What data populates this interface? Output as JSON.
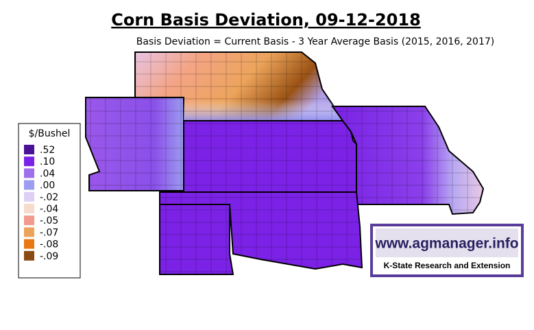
{
  "header": {
    "title": "Corn Basis Deviation, 09-12-2018",
    "subtitle": "Basis Deviation = Current Basis - 3 Year Average Basis (2015, 2016, 2017)"
  },
  "legend": {
    "title": "$/Bushel",
    "items": [
      {
        "label": ".52",
        "color": "#4b1196"
      },
      {
        "label": ".10",
        "color": "#7b22e6"
      },
      {
        "label": ".04",
        "color": "#a070ec"
      },
      {
        "label": ".00",
        "color": "#9c9cf0"
      },
      {
        "label": "-.02",
        "color": "#ddd0f4"
      },
      {
        "label": "-.04",
        "color": "#f6dccc"
      },
      {
        "label": "-.05",
        "color": "#f29a8e"
      },
      {
        "label": "-.07",
        "color": "#eca45c"
      },
      {
        "label": "-.08",
        "color": "#e87812"
      },
      {
        "label": "-.09",
        "color": "#8a4a14"
      }
    ]
  },
  "logo": {
    "url": "www.agmanager.info",
    "org": "K-State Research and Extension"
  }
}
